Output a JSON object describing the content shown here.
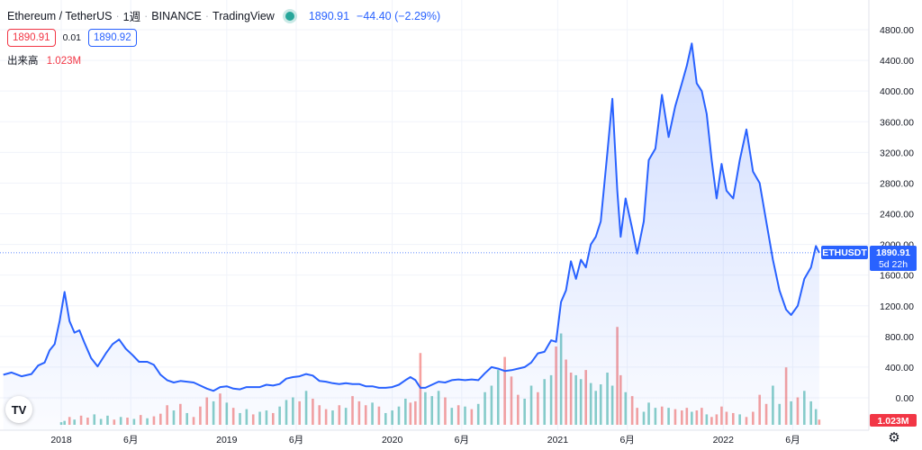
{
  "legend": {
    "symbol": "Ethereum / TetherUS",
    "interval": "1週",
    "exchange": "BINANCE",
    "source": "TradingView",
    "status_color": "#26a69a",
    "last": "1890.91",
    "change": "−44.40 (−2.29%)"
  },
  "trade": {
    "sell": "1890.91",
    "spread": "0.01",
    "buy": "1890.92"
  },
  "volume": {
    "label": "出来高",
    "value": "1.023M"
  },
  "price_tag": {
    "symbol": "ETHUSDT",
    "price": "1890.91",
    "countdown": "5d 22h"
  },
  "colors": {
    "line": "#2962ff",
    "up_volume": "#26a69a",
    "down_volume": "#ef5350",
    "price_tag": "#2962ff",
    "volume_tag": "#f23645"
  },
  "icons": {
    "logo": "tradingview-logo-icon",
    "settings": "gear-icon"
  },
  "chart_data": {
    "type": "area",
    "title": "",
    "ylim": [
      -150,
      4900
    ],
    "y_ticks": [
      "0.00",
      "400.00",
      "800.00",
      "1200.00",
      "1600.00",
      "2000.00",
      "2400.00",
      "2800.00",
      "3200.00",
      "3600.00",
      "4000.00",
      "4400.00",
      "4800.00"
    ],
    "x_ticks": [
      {
        "label": "2018",
        "x": 2018.0
      },
      {
        "label": "6月",
        "x": 2018.42
      },
      {
        "label": "2019",
        "x": 2019.0
      },
      {
        "label": "6月",
        "x": 2019.42
      },
      {
        "label": "2020",
        "x": 2020.0
      },
      {
        "label": "6月",
        "x": 2020.42
      },
      {
        "label": "2021",
        "x": 2021.0
      },
      {
        "label": "6月",
        "x": 2021.42
      },
      {
        "label": "2022",
        "x": 2022.0
      },
      {
        "label": "6月",
        "x": 2022.42
      }
    ],
    "xlim": [
      2017.63,
      2022.88
    ],
    "grid": true,
    "current_price": 1890.91,
    "series": [
      {
        "values": [
          [
            2017.65,
            300
          ],
          [
            2017.7,
            330
          ],
          [
            2017.76,
            280
          ],
          [
            2017.82,
            310
          ],
          [
            2017.86,
            420
          ],
          [
            2017.9,
            460
          ],
          [
            2017.93,
            620
          ],
          [
            2017.96,
            700
          ],
          [
            2017.99,
            1000
          ],
          [
            2018.02,
            1380
          ],
          [
            2018.05,
            1000
          ],
          [
            2018.08,
            850
          ],
          [
            2018.11,
            880
          ],
          [
            2018.14,
            720
          ],
          [
            2018.18,
            520
          ],
          [
            2018.22,
            410
          ],
          [
            2018.27,
            580
          ],
          [
            2018.31,
            700
          ],
          [
            2018.35,
            760
          ],
          [
            2018.39,
            640
          ],
          [
            2018.43,
            560
          ],
          [
            2018.47,
            470
          ],
          [
            2018.52,
            470
          ],
          [
            2018.56,
            430
          ],
          [
            2018.6,
            300
          ],
          [
            2018.64,
            230
          ],
          [
            2018.68,
            200
          ],
          [
            2018.72,
            220
          ],
          [
            2018.76,
            210
          ],
          [
            2018.8,
            200
          ],
          [
            2018.84,
            160
          ],
          [
            2018.88,
            120
          ],
          [
            2018.92,
            90
          ],
          [
            2018.96,
            140
          ],
          [
            2019.0,
            150
          ],
          [
            2019.04,
            120
          ],
          [
            2019.08,
            110
          ],
          [
            2019.12,
            140
          ],
          [
            2019.16,
            140
          ],
          [
            2019.2,
            140
          ],
          [
            2019.24,
            170
          ],
          [
            2019.28,
            160
          ],
          [
            2019.32,
            180
          ],
          [
            2019.36,
            250
          ],
          [
            2019.4,
            270
          ],
          [
            2019.44,
            280
          ],
          [
            2019.48,
            310
          ],
          [
            2019.52,
            290
          ],
          [
            2019.56,
            220
          ],
          [
            2019.6,
            210
          ],
          [
            2019.64,
            190
          ],
          [
            2019.68,
            180
          ],
          [
            2019.72,
            190
          ],
          [
            2019.76,
            180
          ],
          [
            2019.8,
            180
          ],
          [
            2019.84,
            150
          ],
          [
            2019.88,
            150
          ],
          [
            2019.92,
            130
          ],
          [
            2019.96,
            130
          ],
          [
            2020.0,
            140
          ],
          [
            2020.04,
            170
          ],
          [
            2020.08,
            230
          ],
          [
            2020.11,
            270
          ],
          [
            2020.14,
            230
          ],
          [
            2020.17,
            130
          ],
          [
            2020.2,
            130
          ],
          [
            2020.24,
            170
          ],
          [
            2020.28,
            210
          ],
          [
            2020.32,
            200
          ],
          [
            2020.36,
            230
          ],
          [
            2020.4,
            240
          ],
          [
            2020.44,
            230
          ],
          [
            2020.48,
            240
          ],
          [
            2020.52,
            230
          ],
          [
            2020.56,
            320
          ],
          [
            2020.6,
            400
          ],
          [
            2020.64,
            380
          ],
          [
            2020.68,
            350
          ],
          [
            2020.72,
            360
          ],
          [
            2020.76,
            380
          ],
          [
            2020.8,
            400
          ],
          [
            2020.84,
            460
          ],
          [
            2020.88,
            580
          ],
          [
            2020.92,
            600
          ],
          [
            2020.96,
            750
          ],
          [
            2020.99,
            730
          ],
          [
            2021.02,
            1250
          ],
          [
            2021.05,
            1400
          ],
          [
            2021.08,
            1780
          ],
          [
            2021.11,
            1550
          ],
          [
            2021.14,
            1800
          ],
          [
            2021.17,
            1700
          ],
          [
            2021.2,
            2000
          ],
          [
            2021.23,
            2100
          ],
          [
            2021.26,
            2300
          ],
          [
            2021.3,
            3200
          ],
          [
            2021.33,
            3900
          ],
          [
            2021.36,
            2700
          ],
          [
            2021.38,
            2100
          ],
          [
            2021.41,
            2600
          ],
          [
            2021.45,
            2200
          ],
          [
            2021.48,
            1880
          ],
          [
            2021.52,
            2300
          ],
          [
            2021.55,
            3100
          ],
          [
            2021.59,
            3250
          ],
          [
            2021.63,
            3950
          ],
          [
            2021.67,
            3400
          ],
          [
            2021.71,
            3800
          ],
          [
            2021.75,
            4100
          ],
          [
            2021.78,
            4330
          ],
          [
            2021.81,
            4620
          ],
          [
            2021.84,
            4100
          ],
          [
            2021.87,
            4000
          ],
          [
            2021.9,
            3700
          ],
          [
            2021.93,
            3100
          ],
          [
            2021.96,
            2600
          ],
          [
            2021.99,
            3050
          ],
          [
            2022.02,
            2700
          ],
          [
            2022.06,
            2600
          ],
          [
            2022.1,
            3100
          ],
          [
            2022.14,
            3500
          ],
          [
            2022.18,
            2950
          ],
          [
            2022.22,
            2800
          ],
          [
            2022.26,
            2300
          ],
          [
            2022.3,
            1800
          ],
          [
            2022.34,
            1400
          ],
          [
            2022.38,
            1150
          ],
          [
            2022.41,
            1080
          ],
          [
            2022.45,
            1200
          ],
          [
            2022.49,
            1550
          ],
          [
            2022.53,
            1700
          ],
          [
            2022.56,
            1980
          ],
          [
            2022.58,
            1890.91
          ]
        ]
      },
      {
        "name": "volume",
        "values": [
          [
            2018.0,
            20,
            0
          ],
          [
            2018.02,
            30,
            0
          ],
          [
            2018.05,
            60,
            1
          ],
          [
            2018.08,
            40,
            0
          ],
          [
            2018.12,
            70,
            1
          ],
          [
            2018.16,
            55,
            1
          ],
          [
            2018.2,
            80,
            0
          ],
          [
            2018.24,
            45,
            0
          ],
          [
            2018.28,
            70,
            0
          ],
          [
            2018.32,
            40,
            1
          ],
          [
            2018.36,
            60,
            0
          ],
          [
            2018.4,
            55,
            1
          ],
          [
            2018.44,
            45,
            0
          ],
          [
            2018.48,
            75,
            1
          ],
          [
            2018.52,
            50,
            0
          ],
          [
            2018.56,
            65,
            1
          ],
          [
            2018.6,
            85,
            1
          ],
          [
            2018.64,
            150,
            1
          ],
          [
            2018.68,
            110,
            0
          ],
          [
            2018.72,
            160,
            1
          ],
          [
            2018.76,
            90,
            0
          ],
          [
            2018.8,
            60,
            1
          ],
          [
            2018.84,
            140,
            1
          ],
          [
            2018.88,
            210,
            1
          ],
          [
            2018.92,
            180,
            0
          ],
          [
            2018.96,
            240,
            1
          ],
          [
            2019.0,
            170,
            0
          ],
          [
            2019.04,
            130,
            1
          ],
          [
            2019.08,
            90,
            0
          ],
          [
            2019.12,
            120,
            0
          ],
          [
            2019.16,
            80,
            1
          ],
          [
            2019.2,
            100,
            0
          ],
          [
            2019.24,
            110,
            0
          ],
          [
            2019.28,
            90,
            1
          ],
          [
            2019.32,
            140,
            0
          ],
          [
            2019.36,
            190,
            0
          ],
          [
            2019.4,
            210,
            0
          ],
          [
            2019.44,
            180,
            1
          ],
          [
            2019.48,
            260,
            0
          ],
          [
            2019.52,
            200,
            1
          ],
          [
            2019.56,
            150,
            1
          ],
          [
            2019.6,
            120,
            1
          ],
          [
            2019.64,
            110,
            0
          ],
          [
            2019.68,
            150,
            1
          ],
          [
            2019.72,
            130,
            0
          ],
          [
            2019.76,
            220,
            1
          ],
          [
            2019.8,
            180,
            1
          ],
          [
            2019.84,
            150,
            1
          ],
          [
            2019.88,
            170,
            0
          ],
          [
            2019.92,
            140,
            1
          ],
          [
            2019.96,
            90,
            0
          ],
          [
            2020.0,
            110,
            0
          ],
          [
            2020.04,
            140,
            0
          ],
          [
            2020.08,
            200,
            0
          ],
          [
            2020.11,
            170,
            1
          ],
          [
            2020.14,
            180,
            1
          ],
          [
            2020.17,
            550,
            1
          ],
          [
            2020.2,
            250,
            0
          ],
          [
            2020.24,
            220,
            0
          ],
          [
            2020.28,
            260,
            0
          ],
          [
            2020.32,
            210,
            1
          ],
          [
            2020.36,
            130,
            0
          ],
          [
            2020.4,
            150,
            1
          ],
          [
            2020.44,
            140,
            0
          ],
          [
            2020.48,
            120,
            1
          ],
          [
            2020.52,
            160,
            0
          ],
          [
            2020.56,
            250,
            0
          ],
          [
            2020.6,
            300,
            0
          ],
          [
            2020.64,
            420,
            0
          ],
          [
            2020.68,
            520,
            1
          ],
          [
            2020.72,
            370,
            1
          ],
          [
            2020.76,
            230,
            1
          ],
          [
            2020.8,
            200,
            0
          ],
          [
            2020.84,
            300,
            0
          ],
          [
            2020.88,
            250,
            1
          ],
          [
            2020.92,
            350,
            0
          ],
          [
            2020.96,
            380,
            0
          ],
          [
            2020.99,
            600,
            1
          ],
          [
            2021.02,
            700,
            0
          ],
          [
            2021.05,
            500,
            1
          ],
          [
            2021.08,
            400,
            1
          ],
          [
            2021.11,
            380,
            0
          ],
          [
            2021.14,
            350,
            0
          ],
          [
            2021.17,
            420,
            1
          ],
          [
            2021.2,
            320,
            0
          ],
          [
            2021.23,
            260,
            0
          ],
          [
            2021.26,
            310,
            0
          ],
          [
            2021.3,
            400,
            0
          ],
          [
            2021.33,
            300,
            0
          ],
          [
            2021.36,
            750,
            1
          ],
          [
            2021.38,
            380,
            1
          ],
          [
            2021.41,
            250,
            0
          ],
          [
            2021.45,
            220,
            1
          ],
          [
            2021.48,
            130,
            1
          ],
          [
            2021.52,
            100,
            0
          ],
          [
            2021.55,
            170,
            0
          ],
          [
            2021.59,
            130,
            0
          ],
          [
            2021.63,
            140,
            1
          ],
          [
            2021.67,
            130,
            0
          ],
          [
            2021.71,
            120,
            1
          ],
          [
            2021.75,
            110,
            1
          ],
          [
            2021.78,
            130,
            1
          ],
          [
            2021.81,
            100,
            0
          ],
          [
            2021.84,
            110,
            1
          ],
          [
            2021.87,
            130,
            1
          ],
          [
            2021.9,
            80,
            0
          ],
          [
            2021.93,
            60,
            1
          ],
          [
            2021.96,
            80,
            1
          ],
          [
            2021.99,
            140,
            1
          ],
          [
            2022.02,
            100,
            1
          ],
          [
            2022.06,
            90,
            1
          ],
          [
            2022.1,
            80,
            0
          ],
          [
            2022.14,
            60,
            1
          ],
          [
            2022.18,
            100,
            1
          ],
          [
            2022.22,
            230,
            1
          ],
          [
            2022.26,
            160,
            1
          ],
          [
            2022.3,
            300,
            0
          ],
          [
            2022.34,
            160,
            0
          ],
          [
            2022.38,
            440,
            1
          ],
          [
            2022.41,
            180,
            0
          ],
          [
            2022.45,
            210,
            1
          ],
          [
            2022.49,
            260,
            0
          ],
          [
            2022.53,
            180,
            0
          ],
          [
            2022.56,
            120,
            0
          ],
          [
            2022.58,
            40,
            1
          ]
        ]
      }
    ]
  }
}
